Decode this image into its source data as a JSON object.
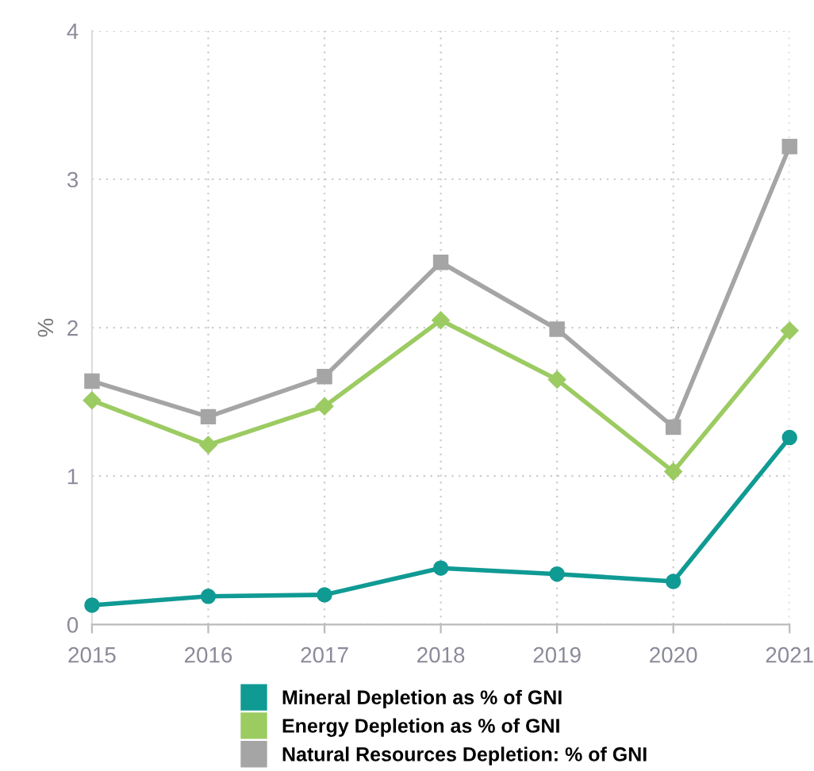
{
  "chart_data": {
    "type": "line",
    "ylabel": "%",
    "categories": [
      "2015",
      "2016",
      "2017",
      "2018",
      "2019",
      "2020",
      "2021"
    ],
    "series": [
      {
        "name": "Mineral Depletion as % of GNI",
        "color": "#109a94",
        "marker": "circle",
        "values": [
          0.13,
          0.19,
          0.2,
          0.38,
          0.34,
          0.29,
          1.26
        ]
      },
      {
        "name": "Energy Depletion as % of GNI",
        "color": "#9ccb62",
        "marker": "diamond",
        "values": [
          1.51,
          1.21,
          1.47,
          2.05,
          1.65,
          1.03,
          1.98
        ]
      },
      {
        "name": "Natural Resources Depletion: % of GNI",
        "color": "#a5a5a5",
        "marker": "square",
        "values": [
          1.64,
          1.4,
          1.67,
          2.44,
          1.99,
          1.33,
          3.22
        ]
      }
    ],
    "ylim": [
      0,
      4
    ],
    "yticks": [
      0,
      1,
      2,
      3,
      4
    ],
    "grid": true,
    "legend": "bottom",
    "line_style": "solid"
  }
}
